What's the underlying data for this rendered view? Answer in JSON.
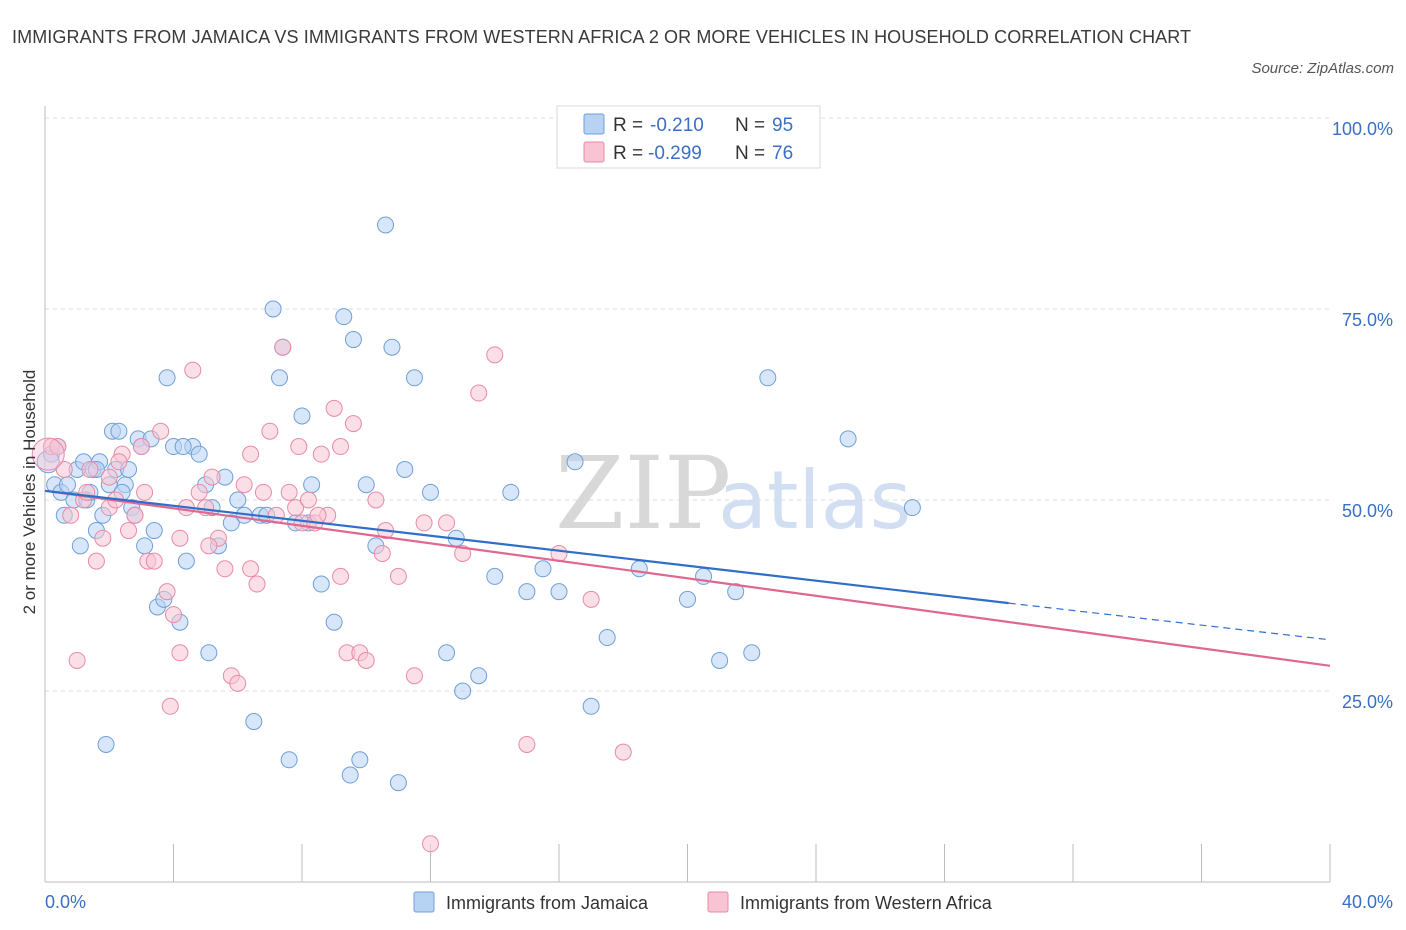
{
  "header": {
    "title": "IMMIGRANTS FROM JAMAICA VS IMMIGRANTS FROM WESTERN AFRICA 2 OR MORE VEHICLES IN HOUSEHOLD CORRELATION CHART",
    "source": "Source: ZipAtlas.com"
  },
  "watermark": {
    "zip": "ZIP",
    "atlas": "atlas"
  },
  "colors": {
    "jamaica_fill": "#b8d2f4",
    "jamaica_stroke": "#6f9fd8",
    "jamaica_line": "#2f6fc8",
    "wafrica_fill": "#f8c4d4",
    "wafrica_stroke": "#e88aa8",
    "wafrica_line": "#e06890",
    "tick_blue": "#3a6fc4",
    "grid": "#dcdcdc"
  },
  "legend": {
    "rows": [
      {
        "r_label": "R =",
        "r_value": "-0.210",
        "n_label": "N =",
        "n_value": "95"
      },
      {
        "r_label": "R =",
        "r_value": "-0.299",
        "n_label": "N =",
        "n_value": "76"
      }
    ]
  },
  "chart_data": {
    "type": "scatter",
    "title": "IMMIGRANTS FROM JAMAICA VS IMMIGRANTS FROM WESTERN AFRICA 2 OR MORE VEHICLES IN HOUSEHOLD CORRELATION CHART",
    "xlabel": "",
    "ylabel": "2 or more Vehicles in Household",
    "xlim": [
      0,
      40
    ],
    "ylim": [
      0,
      100
    ],
    "x_tick_labels": [
      "0.0%",
      "40.0%"
    ],
    "y_tick_labels": [
      "100.0%",
      "75.0%",
      "50.0%",
      "25.0%"
    ],
    "y_ticks": [
      100,
      75,
      50,
      25
    ],
    "grid": true,
    "legend_position": "top-center",
    "series": [
      {
        "name": "Immigrants from Jamaica",
        "R": -0.21,
        "N": 95,
        "trend": {
          "x0": 0,
          "y0": 51.2,
          "x1": 30,
          "y1": 36.5,
          "dash_to_x": 40,
          "dash_to_y": 31.7
        },
        "points": [
          [
            0.2,
            56
          ],
          [
            0.3,
            52
          ],
          [
            0.4,
            57
          ],
          [
            0.5,
            51
          ],
          [
            0.6,
            48
          ],
          [
            0.7,
            52
          ],
          [
            0.9,
            50
          ],
          [
            1.0,
            54
          ],
          [
            1.1,
            44
          ],
          [
            1.2,
            55
          ],
          [
            1.3,
            50
          ],
          [
            1.4,
            51
          ],
          [
            1.5,
            54
          ],
          [
            1.6,
            46
          ],
          [
            1.7,
            55
          ],
          [
            1.8,
            48
          ],
          [
            1.9,
            18
          ],
          [
            2.0,
            52
          ],
          [
            2.1,
            59
          ],
          [
            2.2,
            54
          ],
          [
            2.3,
            59
          ],
          [
            2.5,
            52
          ],
          [
            2.6,
            54
          ],
          [
            2.7,
            49
          ],
          [
            2.8,
            48
          ],
          [
            2.9,
            58
          ],
          [
            3.0,
            57
          ],
          [
            3.1,
            44
          ],
          [
            3.3,
            58
          ],
          [
            3.4,
            46
          ],
          [
            3.5,
            36
          ],
          [
            3.7,
            37
          ],
          [
            3.8,
            66
          ],
          [
            4.0,
            57
          ],
          [
            4.2,
            34
          ],
          [
            4.4,
            42
          ],
          [
            4.6,
            57
          ],
          [
            4.8,
            56
          ],
          [
            5.0,
            52
          ],
          [
            5.2,
            49
          ],
          [
            5.4,
            44
          ],
          [
            5.6,
            53
          ],
          [
            5.8,
            47
          ],
          [
            6.0,
            50
          ],
          [
            6.2,
            48
          ],
          [
            6.5,
            21
          ],
          [
            6.7,
            48
          ],
          [
            6.9,
            48
          ],
          [
            7.1,
            75
          ],
          [
            7.4,
            70
          ],
          [
            7.6,
            16
          ],
          [
            7.8,
            47
          ],
          [
            8.0,
            61
          ],
          [
            8.3,
            52
          ],
          [
            8.6,
            39
          ],
          [
            9.0,
            34
          ],
          [
            9.3,
            74
          ],
          [
            9.6,
            71
          ],
          [
            9.8,
            16
          ],
          [
            10.0,
            52
          ],
          [
            10.3,
            44
          ],
          [
            10.6,
            86
          ],
          [
            10.8,
            70
          ],
          [
            11.0,
            13
          ],
          [
            11.2,
            54
          ],
          [
            11.5,
            66
          ],
          [
            12.0,
            51
          ],
          [
            12.5,
            30
          ],
          [
            12.8,
            45
          ],
          [
            13.0,
            25
          ],
          [
            13.5,
            27
          ],
          [
            14.0,
            40
          ],
          [
            14.5,
            51
          ],
          [
            15.0,
            38
          ],
          [
            15.5,
            41
          ],
          [
            16.0,
            38
          ],
          [
            16.5,
            55
          ],
          [
            17.0,
            23
          ],
          [
            17.5,
            32
          ],
          [
            18.5,
            41
          ],
          [
            20.0,
            37
          ],
          [
            20.5,
            40
          ],
          [
            21.0,
            29
          ],
          [
            21.5,
            38
          ],
          [
            22.0,
            30
          ],
          [
            22.5,
            66
          ],
          [
            25.0,
            58
          ],
          [
            27.0,
            49
          ],
          [
            5.1,
            30
          ],
          [
            7.3,
            66
          ],
          [
            8.2,
            47
          ],
          [
            9.5,
            14
          ],
          [
            4.3,
            57
          ],
          [
            2.4,
            51
          ],
          [
            1.6,
            54
          ]
        ]
      },
      {
        "name": "Immigrants from Western Africa",
        "R": -0.299,
        "N": 76,
        "trend": {
          "x0": 0,
          "y0": 51.2,
          "x1": 40,
          "y1": 28.3
        },
        "points": [
          [
            0.2,
            57
          ],
          [
            0.4,
            57
          ],
          [
            0.6,
            54
          ],
          [
            0.8,
            48
          ],
          [
            1.0,
            29
          ],
          [
            1.2,
            50
          ],
          [
            1.4,
            54
          ],
          [
            1.6,
            42
          ],
          [
            1.8,
            45
          ],
          [
            2.0,
            49
          ],
          [
            2.2,
            50
          ],
          [
            2.4,
            56
          ],
          [
            2.6,
            46
          ],
          [
            2.8,
            48
          ],
          [
            3.0,
            57
          ],
          [
            3.2,
            42
          ],
          [
            3.4,
            42
          ],
          [
            3.6,
            59
          ],
          [
            3.8,
            38
          ],
          [
            4.0,
            35
          ],
          [
            4.2,
            30
          ],
          [
            4.4,
            49
          ],
          [
            4.6,
            67
          ],
          [
            4.8,
            51
          ],
          [
            5.0,
            49
          ],
          [
            5.2,
            53
          ],
          [
            5.4,
            45
          ],
          [
            5.6,
            41
          ],
          [
            5.8,
            27
          ],
          [
            6.0,
            26
          ],
          [
            6.2,
            52
          ],
          [
            6.4,
            41
          ],
          [
            6.6,
            39
          ],
          [
            6.8,
            51
          ],
          [
            7.0,
            59
          ],
          [
            7.2,
            48
          ],
          [
            7.4,
            70
          ],
          [
            7.6,
            51
          ],
          [
            7.8,
            49
          ],
          [
            8.0,
            47
          ],
          [
            8.2,
            50
          ],
          [
            8.4,
            47
          ],
          [
            8.6,
            56
          ],
          [
            8.8,
            48
          ],
          [
            9.0,
            62
          ],
          [
            9.2,
            40
          ],
          [
            9.4,
            30
          ],
          [
            9.6,
            60
          ],
          [
            9.8,
            30
          ],
          [
            10.0,
            29
          ],
          [
            10.3,
            50
          ],
          [
            10.6,
            46
          ],
          [
            11.0,
            40
          ],
          [
            11.5,
            27
          ],
          [
            12.0,
            5
          ],
          [
            12.5,
            47
          ],
          [
            13.0,
            43
          ],
          [
            13.5,
            64
          ],
          [
            14.0,
            69
          ],
          [
            15.0,
            18
          ],
          [
            16.0,
            43
          ],
          [
            17.0,
            37
          ],
          [
            18.0,
            17
          ],
          [
            2.3,
            55
          ],
          [
            3.9,
            23
          ],
          [
            7.9,
            57
          ],
          [
            8.5,
            48
          ],
          [
            9.2,
            57
          ],
          [
            10.5,
            43
          ],
          [
            11.8,
            47
          ],
          [
            6.4,
            56
          ],
          [
            5.1,
            44
          ],
          [
            4.2,
            45
          ],
          [
            3.1,
            51
          ],
          [
            1.3,
            51
          ],
          [
            2.0,
            53
          ]
        ]
      }
    ]
  },
  "bottom_legend": {
    "items": [
      {
        "label": "Immigrants from Jamaica"
      },
      {
        "label": "Immigrants from Western Africa"
      }
    ]
  }
}
